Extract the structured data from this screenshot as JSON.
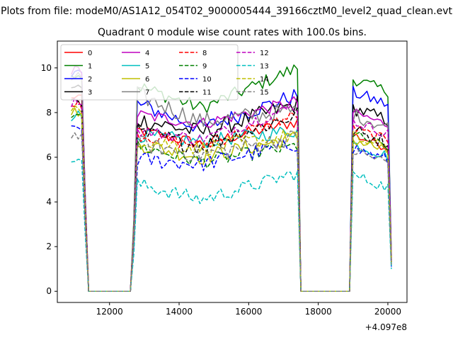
{
  "chart_data": {
    "type": "line",
    "suptitle": "Plots from file: modeM0/AS1A12_054T02_9000005444_39166cztM0_level2_quad_clean.evt",
    "title": "Quadrant 0 module wise count rates with 100.0s bins.",
    "xlabel": "",
    "ylabel": "",
    "x_offset_text": "+4.097e8",
    "xlim": [
      10500,
      20550
    ],
    "ylim": [
      -0.5,
      11.2
    ],
    "xticks": [
      12000,
      14000,
      16000,
      18000,
      20000
    ],
    "yticks": [
      0,
      2,
      4,
      6,
      8,
      10
    ],
    "legend_loc": "upper-left",
    "legend_ncol": 4,
    "gaps": [
      {
        "fall_start": 11200,
        "zero_start": 11400,
        "zero_end": 12600,
        "rise_end": 12800
      },
      {
        "fall_start": 17400,
        "zero_start": 17500,
        "zero_end": 18900,
        "rise_end": 19000
      }
    ],
    "x_end": 20100,
    "series": [
      {
        "name": "0",
        "color": "#ff0000",
        "dash": "solid",
        "level": [
          8.6,
          7.2,
          6.6,
          7.6,
          7.0
        ],
        "end": 1.3
      },
      {
        "name": "1",
        "color": "#008000",
        "dash": "solid",
        "level": [
          9.6,
          9.2,
          8.2,
          10.0,
          9.5
        ],
        "end": 1.6
      },
      {
        "name": "2",
        "color": "#0000ff",
        "dash": "solid",
        "level": [
          9.7,
          8.4,
          7.3,
          8.8,
          8.9
        ],
        "end": 1.5
      },
      {
        "name": "3",
        "color": "#000000",
        "dash": "solid",
        "level": [
          9.0,
          7.7,
          7.1,
          8.4,
          8.2
        ],
        "end": 1.4
      },
      {
        "name": "4",
        "color": "#bf00bf",
        "dash": "solid",
        "level": [
          9.8,
          7.9,
          7.5,
          8.5,
          8.0
        ],
        "end": 1.4
      },
      {
        "name": "5",
        "color": "#00bfbf",
        "dash": "solid",
        "level": [
          7.8,
          7.0,
          6.7,
          7.2,
          6.6
        ],
        "end": 1.3
      },
      {
        "name": "6",
        "color": "#bfbf00",
        "dash": "solid",
        "level": [
          7.9,
          6.6,
          6.0,
          6.9,
          6.8
        ],
        "end": 1.2
      },
      {
        "name": "7",
        "color": "#808080",
        "dash": "solid",
        "level": [
          9.5,
          8.8,
          7.6,
          8.1,
          7.9
        ],
        "end": 1.5
      },
      {
        "name": "8",
        "color": "#ff0000",
        "dash": "dashed",
        "level": [
          8.3,
          7.0,
          6.5,
          7.9,
          7.3
        ],
        "end": 1.3
      },
      {
        "name": "9",
        "color": "#008000",
        "dash": "dashed",
        "level": [
          7.9,
          6.5,
          5.8,
          6.5,
          7.0
        ],
        "end": 1.2
      },
      {
        "name": "10",
        "color": "#0000ff",
        "dash": "dashed",
        "level": [
          7.2,
          5.9,
          5.7,
          6.6,
          6.4
        ],
        "end": 1.1
      },
      {
        "name": "11",
        "color": "#000000",
        "dash": "dashed",
        "level": [
          8.5,
          7.1,
          6.5,
          7.9,
          7.2
        ],
        "end": 1.3
      },
      {
        "name": "12",
        "color": "#bf00bf",
        "dash": "dashed",
        "level": [
          8.4,
          7.2,
          6.8,
          8.3,
          7.6
        ],
        "end": 1.4
      },
      {
        "name": "13",
        "color": "#00bfbf",
        "dash": "dashed",
        "level": [
          5.8,
          4.8,
          4.1,
          5.3,
          5.2
        ],
        "end": 1.0
      },
      {
        "name": "14",
        "color": "#bfbf00",
        "dash": "dashed",
        "level": [
          8.0,
          6.8,
          6.4,
          7.0,
          6.9
        ],
        "end": 1.3
      },
      {
        "name": "15",
        "color": "#808080",
        "dash": "dashed",
        "level": [
          6.9,
          6.6,
          6.1,
          6.9,
          6.3
        ],
        "end": 1.2
      }
    ]
  }
}
